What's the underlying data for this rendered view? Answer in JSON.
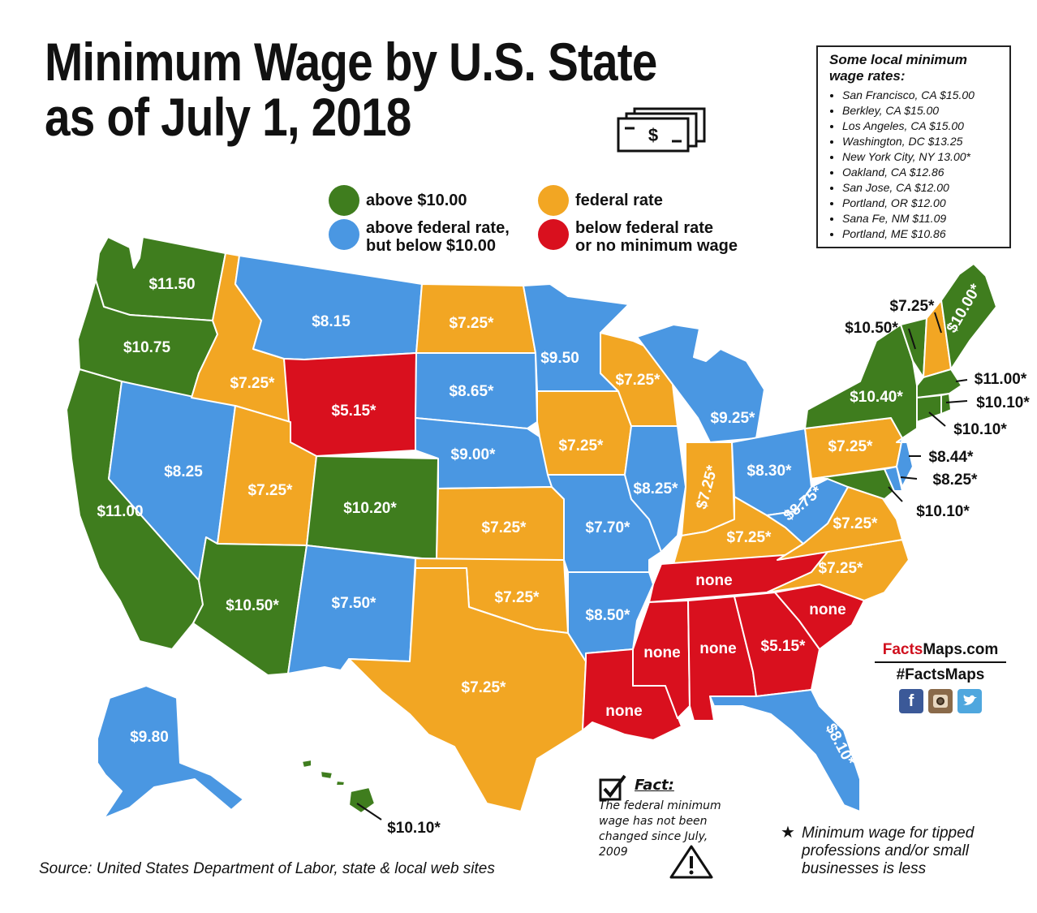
{
  "title": {
    "line1": "Minimum Wage by U.S. State",
    "line2": "as of July 1, 2018"
  },
  "money_icon": "dollar-bills-icon",
  "legend": [
    {
      "label_line1": "above $10.00",
      "label_line2": "",
      "color": "#3f7d1e"
    },
    {
      "label_line1": "federal rate",
      "label_line2": "",
      "color": "#f2a623"
    },
    {
      "label_line1": "above federal rate,",
      "label_line2": "but below $10.00",
      "color": "#4a97e2"
    },
    {
      "label_line1": "below federal rate",
      "label_line2": "or no minimum wage",
      "color": "#d9101e"
    }
  ],
  "local_rates": {
    "heading_line1": "Some local minimum",
    "heading_line2": "wage rates:",
    "items": [
      "San Francisco, CA $15.00",
      "Berkley, CA $15.00",
      "Los Angeles, CA $15.00",
      "Washington, DC $13.25",
      "New York City, NY 13.00*",
      "Oakland, CA $12.86",
      "San Jose, CA $12.00",
      "Portland, OR $12.00",
      "Sana Fe, NM $11.09",
      "Portland, ME $10.86"
    ]
  },
  "colors": {
    "green": "#3f7d1e",
    "blue": "#4a97e2",
    "orange": "#f2a623",
    "red": "#d9101e"
  },
  "states": {
    "WA": {
      "label": "$11.50",
      "category": "green"
    },
    "OR": {
      "label": "$10.75",
      "category": "green"
    },
    "CA": {
      "label": "$11.00",
      "category": "green"
    },
    "NV": {
      "label": "$8.25",
      "category": "blue"
    },
    "ID": {
      "label": "$7.25*",
      "category": "orange"
    },
    "MT": {
      "label": "$8.15",
      "category": "blue"
    },
    "WY": {
      "label": "$5.15*",
      "category": "red"
    },
    "UT": {
      "label": "$7.25*",
      "category": "orange"
    },
    "AZ": {
      "label": "$10.50*",
      "category": "green"
    },
    "CO": {
      "label": "$10.20*",
      "category": "green"
    },
    "NM": {
      "label": "$7.50*",
      "category": "blue"
    },
    "ND": {
      "label": "$7.25*",
      "category": "orange"
    },
    "SD": {
      "label": "$8.65*",
      "category": "blue"
    },
    "NE": {
      "label": "$9.00*",
      "category": "blue"
    },
    "KS": {
      "label": "$7.25*",
      "category": "orange"
    },
    "OK": {
      "label": "$7.25*",
      "category": "orange"
    },
    "TX": {
      "label": "$7.25*",
      "category": "orange"
    },
    "MN": {
      "label": "$9.50",
      "category": "blue"
    },
    "IA": {
      "label": "$7.25*",
      "category": "orange"
    },
    "MO": {
      "label": "$7.70*",
      "category": "blue"
    },
    "AR": {
      "label": "$8.50*",
      "category": "blue"
    },
    "LA": {
      "label": "none",
      "category": "red"
    },
    "WI": {
      "label": "$7.25*",
      "category": "orange"
    },
    "IL": {
      "label": "$8.25*",
      "category": "blue"
    },
    "MI": {
      "label": "$9.25*",
      "category": "blue"
    },
    "IN": {
      "label": "$7.25*",
      "category": "orange"
    },
    "OH": {
      "label": "$8.30*",
      "category": "blue"
    },
    "KY": {
      "label": "$7.25*",
      "category": "orange"
    },
    "TN": {
      "label": "none",
      "category": "red"
    },
    "MS": {
      "label": "none",
      "category": "red"
    },
    "AL": {
      "label": "none",
      "category": "red"
    },
    "GA": {
      "label": "$5.15*",
      "category": "red"
    },
    "FL": {
      "label": "$8.10*",
      "category": "blue"
    },
    "SC": {
      "label": "none",
      "category": "red"
    },
    "NC": {
      "label": "$7.25*",
      "category": "orange"
    },
    "VA": {
      "label": "$7.25*",
      "category": "orange"
    },
    "WV": {
      "label": "$8.75*",
      "category": "blue"
    },
    "PA": {
      "label": "$7.25*",
      "category": "orange"
    },
    "NY": {
      "label": "$10.40*",
      "category": "green"
    },
    "VT": {
      "label": "$10.50*",
      "category": "green"
    },
    "NH": {
      "label": "$7.25*",
      "category": "orange"
    },
    "ME": {
      "label": "$10.00*",
      "category": "green"
    },
    "MA": {
      "label": "$11.00*",
      "category": "green"
    },
    "RI": {
      "label": "$10.10*",
      "category": "green"
    },
    "CT": {
      "label": "$10.10*",
      "category": "green"
    },
    "NJ": {
      "label": "$8.44*",
      "category": "blue"
    },
    "DE": {
      "label": "$8.25*",
      "category": "blue"
    },
    "MD": {
      "label": "$10.10*",
      "category": "green"
    },
    "AK": {
      "label": "$9.80",
      "category": "blue"
    },
    "HI": {
      "label": "$10.10*",
      "category": "green"
    }
  },
  "brand": {
    "site_part1": "Facts",
    "site_part2": "Maps.com",
    "hashtag": "#FactsMaps",
    "icons": [
      "facebook-icon",
      "instagram-icon",
      "twitter-icon"
    ]
  },
  "fact": {
    "heading": "Fact:",
    "body": "The federal minimum wage has not been changed since July, 2009"
  },
  "footnote": {
    "star": "★",
    "text": "Minimum wage for tipped professions and/or small businesses is less"
  },
  "source": "Source: United States Department of Labor, state & local web sites"
}
